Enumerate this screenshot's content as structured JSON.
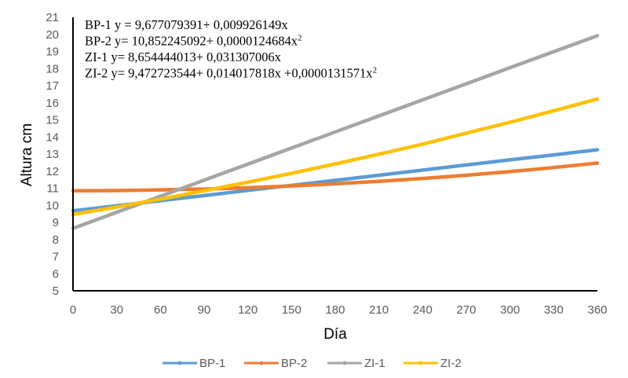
{
  "chart_data": {
    "type": "line",
    "title": "",
    "xlabel": "Día",
    "ylabel": "Altura cm",
    "xlim": [
      0,
      360
    ],
    "ylim": [
      5,
      21
    ],
    "xticks": [
      0,
      30,
      60,
      90,
      120,
      150,
      180,
      210,
      240,
      270,
      300,
      330,
      360
    ],
    "yticks": [
      5,
      6,
      7,
      8,
      9,
      10,
      11,
      12,
      13,
      14,
      15,
      16,
      17,
      18,
      19,
      20,
      21
    ],
    "grid": false,
    "legend_position": "bottom",
    "x": [
      0,
      30,
      60,
      90,
      120,
      150,
      180,
      210,
      240,
      270,
      300,
      330,
      360
    ],
    "series": [
      {
        "name": "BP-1",
        "color": "#5B9BD5",
        "values": [
          9.68,
          9.97,
          10.27,
          10.57,
          10.87,
          11.17,
          11.46,
          11.76,
          12.06,
          12.36,
          12.66,
          12.95,
          13.25
        ]
      },
      {
        "name": "BP-2",
        "color": "#ED7D31",
        "values": [
          10.85,
          10.86,
          10.9,
          10.95,
          11.03,
          11.13,
          11.26,
          11.4,
          11.57,
          11.76,
          11.97,
          12.21,
          12.47
        ]
      },
      {
        "name": "ZI-1",
        "color": "#A5A5A5",
        "values": [
          8.65,
          9.59,
          10.53,
          11.47,
          12.41,
          13.35,
          14.29,
          15.23,
          16.17,
          17.11,
          18.05,
          18.99,
          19.92
        ]
      },
      {
        "name": "ZI-2",
        "color": "#FFC000",
        "values": [
          9.47,
          9.9,
          10.36,
          10.85,
          11.35,
          11.87,
          12.42,
          12.99,
          13.58,
          14.22,
          14.86,
          15.53,
          16.22
        ]
      }
    ],
    "annotations": [
      {
        "label": "BP-1 y = 9,677079391+  0,009926149x",
        "sup": ""
      },
      {
        "label": "BP-2 y= 10,852245092+  0,0000124684x",
        "sup": "2"
      },
      {
        "label": "ZI-1 y= 8,654444013+ 0,031307006x",
        "sup": ""
      },
      {
        "label": "ZI-2 y= 9,472723544+ 0,014017818x  +0,0000131571x",
        "sup": "2"
      }
    ]
  }
}
